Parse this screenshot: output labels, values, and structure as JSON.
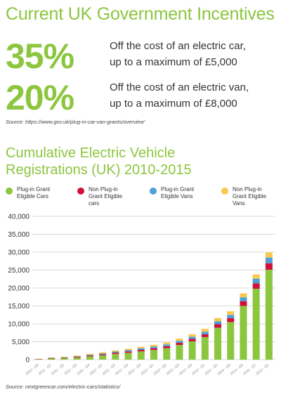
{
  "header": {
    "title": "Current UK Government Incentives"
  },
  "incentives": [
    {
      "percent": "35%",
      "line1": "Off the cost of an electric car,",
      "line2": "up to a maximum of £5,000"
    },
    {
      "percent": "20%",
      "line1": "Off the cost of an electric van,",
      "line2": "up to a maximum of £8,000"
    }
  ],
  "source_1": "Source: https://www.gov.uk/plug-in-car-van-grants/overview'",
  "source_2": "Source: nextgreencar.com/electric-cars/statistics/",
  "colors": {
    "accent": "#8cc63f",
    "cars": "#8cc63f",
    "non_cars": "#d0103a",
    "vans": "#4f9fd8",
    "non_vans": "#f9c94d",
    "grid": "#d9d9d9"
  },
  "chart_data": {
    "type": "bar",
    "stacked": true,
    "title_line1": "Cumulative Electric Vehicle",
    "title_line2": "Registrations (UK) 2010-2015",
    "categories": [
      "2010 - Q4",
      "2011 - Q1",
      "2011 - Q2",
      "2011 - Q3",
      "2011 - Q4",
      "2012 - Q1",
      "2012 - Q2",
      "2012 - Q3",
      "2012 - Q4",
      "2013 - Q1",
      "2013 - Q2",
      "2013 - Q3",
      "2013 - Q4",
      "2014 - Q1",
      "2014 - Q2",
      "2014 - Q3",
      "2014 - Q4",
      "2015 - Q1",
      "2015 - Q2"
    ],
    "series": [
      {
        "name": "Plug-in Grant Eligible Cars",
        "color": "#8cc63f",
        "values": [
          100,
          300,
          400,
          600,
          900,
          1200,
          1600,
          1900,
          2300,
          2700,
          3200,
          4100,
          5100,
          6300,
          8900,
          10500,
          15000,
          19800,
          25100
        ]
      },
      {
        "name": "Non Plug-in Grant Eligible cars",
        "color": "#d0103a",
        "values": [
          50,
          100,
          150,
          200,
          250,
          300,
          350,
          400,
          450,
          500,
          550,
          600,
          700,
          800,
          1000,
          1100,
          1300,
          1500,
          1800
        ]
      },
      {
        "name": "Plug-in Grant Eligible Vans",
        "color": "#4f9fd8",
        "values": [
          50,
          100,
          100,
          150,
          200,
          250,
          300,
          350,
          400,
          450,
          500,
          550,
          600,
          700,
          800,
          900,
          1100,
          1300,
          1600
        ]
      },
      {
        "name": "Non Plug-in Grant Eligible Vans",
        "color": "#f9c94d",
        "values": [
          50,
          100,
          150,
          200,
          250,
          300,
          350,
          400,
          450,
          500,
          550,
          600,
          700,
          800,
          900,
          1000,
          1100,
          1200,
          1400
        ]
      }
    ],
    "legend": [
      {
        "label": "Plug-in Grant Eligible Cars",
        "color": "#8cc63f"
      },
      {
        "label": "Non Plug-in Grant Eligible cars",
        "color": "#d0103a"
      },
      {
        "label": "Plug-in Grant Eligible Vans",
        "color": "#4f9fd8"
      },
      {
        "label": "Non Plug-in Grant Eligible Vans",
        "color": "#f9c94d"
      }
    ],
    "legend_position": "top",
    "yticks": [
      "0",
      "5,000",
      "10,000",
      "15,000",
      "20,000",
      "25,000",
      "30,000",
      "35,000",
      "40,000"
    ],
    "ylim": [
      0,
      40000
    ],
    "grid": true,
    "xlabel": "",
    "ylabel": ""
  }
}
